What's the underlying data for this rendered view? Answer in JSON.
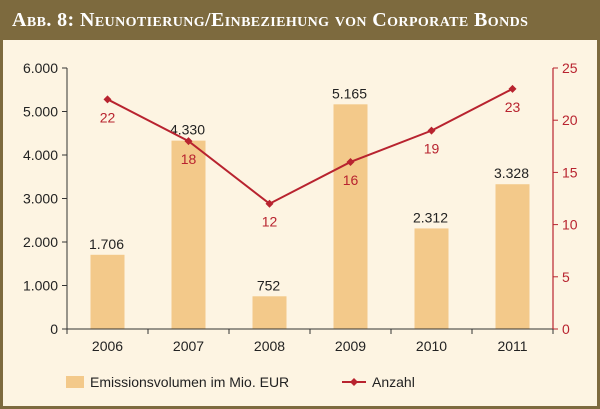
{
  "title": "Abb. 8: Neunotierung/Einbeziehung von Corporate Bonds",
  "colors": {
    "frame": "#7d6a3e",
    "background": "#fdf4e2",
    "bars": "#f3c98a",
    "line": "#b8232f",
    "axis_left": "#333333",
    "axis_right": "#b8232f"
  },
  "chart_data": {
    "type": "bar+line",
    "categories": [
      "2006",
      "2007",
      "2008",
      "2009",
      "2010",
      "2011"
    ],
    "series": [
      {
        "name": "Emissionsvolumen im Mio. EUR",
        "type": "bar",
        "axis": "left",
        "values": [
          1706,
          4330,
          752,
          5165,
          2312,
          3328
        ],
        "labels": [
          "1.706",
          "4.330",
          "752",
          "5.165",
          "2.312",
          "3.328"
        ]
      },
      {
        "name": "Anzahl",
        "type": "line",
        "axis": "right",
        "values": [
          22,
          18,
          12,
          16,
          19,
          23
        ],
        "labels": [
          "22",
          "18",
          "12",
          "16",
          "19",
          "23"
        ]
      }
    ],
    "y_left": {
      "ylim": [
        0,
        6000
      ],
      "ticks": [
        0,
        1000,
        2000,
        3000,
        4000,
        5000,
        6000
      ],
      "tick_labels": [
        "0",
        "1.000",
        "2.000",
        "3.000",
        "4.000",
        "5.000",
        "6.000"
      ]
    },
    "y_right": {
      "ylim": [
        0,
        25
      ],
      "ticks": [
        0,
        5,
        10,
        15,
        20,
        25
      ],
      "tick_labels": [
        "0",
        "5",
        "10",
        "15",
        "20",
        "25"
      ]
    },
    "grid": false,
    "legend_position": "bottom"
  }
}
